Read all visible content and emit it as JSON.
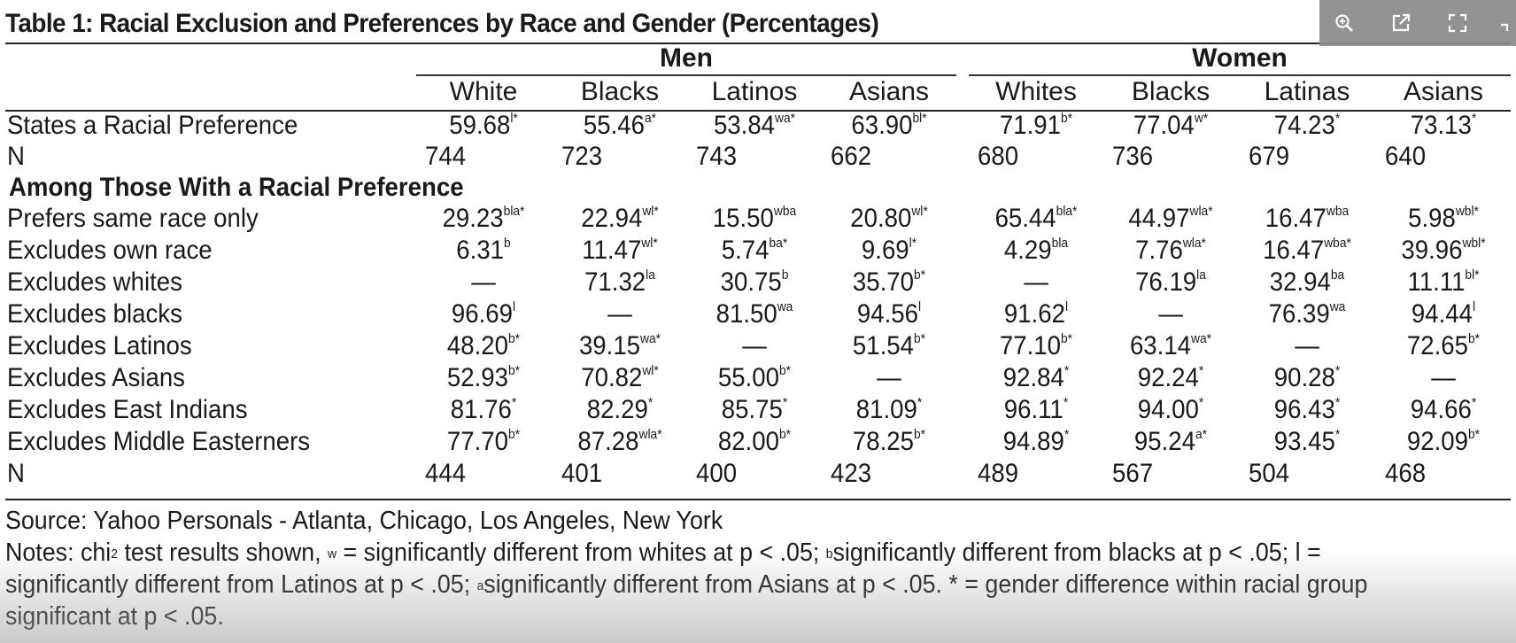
{
  "title": "Table 1: Racial Exclusion and Preferences by Race and Gender (Percentages)",
  "groups": {
    "men": "Men",
    "women": "Women"
  },
  "columns": [
    "White",
    "Blacks",
    "Latinos",
    "Asians",
    "Whites",
    "Blacks",
    "Latinas",
    "Asians"
  ],
  "rows": [
    {
      "label": "States a Racial Preference",
      "cells": [
        [
          "59.68",
          "l*"
        ],
        [
          "55.46",
          "a*"
        ],
        [
          "53.84",
          "wa*"
        ],
        [
          "63.90",
          "bl*"
        ],
        [
          "71.91",
          "b*"
        ],
        [
          "77.04",
          "w*"
        ],
        [
          "74.23",
          "*"
        ],
        [
          "73.13",
          "*"
        ]
      ]
    },
    {
      "label": "N",
      "cells": [
        [
          "744",
          ""
        ],
        [
          "723",
          ""
        ],
        [
          "743",
          ""
        ],
        [
          "662",
          ""
        ],
        [
          "680",
          ""
        ],
        [
          "736",
          ""
        ],
        [
          "679",
          ""
        ],
        [
          "640",
          ""
        ]
      ]
    },
    {
      "label": "Among Those With a Racial Preference",
      "section": true
    },
    {
      "label": "Prefers same race only",
      "cells": [
        [
          "29.23",
          "bla*"
        ],
        [
          "22.94",
          "wl*"
        ],
        [
          "15.50",
          "wba"
        ],
        [
          "20.80",
          "wl*"
        ],
        [
          "65.44",
          "bla*"
        ],
        [
          "44.97",
          "wla*"
        ],
        [
          "16.47",
          "wba"
        ],
        [
          "5.98",
          "wbl*"
        ]
      ]
    },
    {
      "label": "Excludes own race",
      "cells": [
        [
          "6.31",
          "b"
        ],
        [
          "11.47",
          "wl*"
        ],
        [
          "5.74",
          "ba*"
        ],
        [
          "9.69",
          "l*"
        ],
        [
          "4.29",
          "bla"
        ],
        [
          "7.76",
          "wla*"
        ],
        [
          "16.47",
          "wba*"
        ],
        [
          "39.96",
          "wbl*"
        ]
      ]
    },
    {
      "label": "Excludes whites",
      "cells": [
        [
          "—",
          ""
        ],
        [
          "71.32",
          "la"
        ],
        [
          "30.75",
          "b"
        ],
        [
          "35.70",
          "b*"
        ],
        [
          "—",
          ""
        ],
        [
          "76.19",
          "la"
        ],
        [
          "32.94",
          "ba"
        ],
        [
          "11.11",
          "bl*"
        ]
      ]
    },
    {
      "label": "Excludes blacks",
      "cells": [
        [
          "96.69",
          "l"
        ],
        [
          "—",
          ""
        ],
        [
          "81.50",
          "wa"
        ],
        [
          "94.56",
          "l"
        ],
        [
          "91.62",
          "l"
        ],
        [
          "—",
          ""
        ],
        [
          "76.39",
          "wa"
        ],
        [
          "94.44",
          "l"
        ]
      ]
    },
    {
      "label": "Excludes Latinos",
      "cells": [
        [
          "48.20",
          "b*"
        ],
        [
          "39.15",
          "wa*"
        ],
        [
          "—",
          ""
        ],
        [
          "51.54",
          "b*"
        ],
        [
          "77.10",
          "b*"
        ],
        [
          "63.14",
          "wa*"
        ],
        [
          "—",
          ""
        ],
        [
          "72.65",
          "b*"
        ]
      ]
    },
    {
      "label": "Excludes Asians",
      "cells": [
        [
          "52.93",
          "b*"
        ],
        [
          "70.82",
          "wl*"
        ],
        [
          "55.00",
          "b*"
        ],
        [
          "—",
          ""
        ],
        [
          "92.84",
          "*"
        ],
        [
          "92.24",
          "*"
        ],
        [
          "90.28",
          "*"
        ],
        [
          "—",
          ""
        ]
      ]
    },
    {
      "label": "Excludes East Indians",
      "cells": [
        [
          "81.76",
          "*"
        ],
        [
          "82.29",
          "*"
        ],
        [
          "85.75",
          "*"
        ],
        [
          "81.09",
          "*"
        ],
        [
          "96.11",
          "*"
        ],
        [
          "94.00",
          "*"
        ],
        [
          "96.43",
          "*"
        ],
        [
          "94.66",
          "*"
        ]
      ]
    },
    {
      "label": "Excludes Middle Easterners",
      "cells": [
        [
          "77.70",
          "b*"
        ],
        [
          "87.28",
          "wla*"
        ],
        [
          "82.00",
          "b*"
        ],
        [
          "78.25",
          "b*"
        ],
        [
          "94.89",
          "*"
        ],
        [
          "95.24",
          "a*"
        ],
        [
          "93.45",
          "*"
        ],
        [
          "92.09",
          "b*"
        ]
      ]
    },
    {
      "label": "N",
      "cells": [
        [
          "444",
          ""
        ],
        [
          "401",
          ""
        ],
        [
          "400",
          ""
        ],
        [
          "423",
          ""
        ],
        [
          "489",
          ""
        ],
        [
          "567",
          ""
        ],
        [
          "504",
          ""
        ],
        [
          "468",
          ""
        ]
      ]
    }
  ],
  "source": "Source: Yahoo Personals - Atlanta, Chicago, Los Angeles, New York",
  "notes": [
    [
      "Notes: chi",
      "2",
      " test results shown, ",
      "w",
      " = significantly different from whites at p < .05; ",
      "b",
      "significantly different from blacks at p < .05; l  ="
    ],
    [
      "significantly different from Latinos at p < .05; ",
      "a",
      "significantly different from Asians at p < .05. * = gender difference within racial group"
    ],
    [
      "significant at p < .05."
    ]
  ],
  "toolbar": {
    "icons": [
      "zoom-in-icon",
      "open-external-icon",
      "fullscreen-icon",
      "minimize-icon"
    ]
  }
}
